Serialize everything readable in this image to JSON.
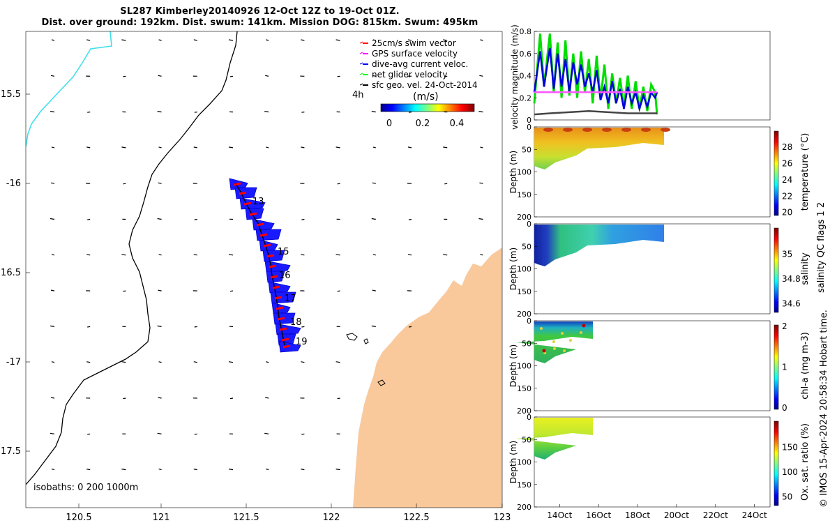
{
  "title_line1": "SL287 Kimberley20140926 12-Oct 12Z to 19-Oct 01Z.",
  "title_line2": "Dist. over ground: 192km. Dist. swum: 141km. Mission DOG: 815km. Swum: 495km",
  "map": {
    "lon_ticks": [
      "120.5",
      "121",
      "121.5",
      "122",
      "122.5",
      "123"
    ],
    "lat_ticks": [
      "15.5",
      "-16",
      "16.5",
      "-17",
      "17.5"
    ],
    "isobath_label": "isobaths: 0   200  1000m",
    "day_labels": [
      "13",
      "15",
      "16",
      "17",
      "18",
      "19"
    ],
    "legend": [
      {
        "label": "25cm/s swim vector",
        "color": "#ff0000"
      },
      {
        "label": "GPS surface velocity",
        "color": "#ff00ff"
      },
      {
        "label": "dive-avg current veloc.",
        "color": "#0000ff"
      },
      {
        "label": "net glider velocity",
        "color": "#00ff00"
      },
      {
        "label": "sfc geo. vel. 24-Oct-2014",
        "color": "#000000"
      }
    ],
    "colorbar_unit": "(m/s)",
    "colorbar_ticks": [
      "0",
      "0.2",
      "0.4"
    ],
    "scale_label": "4h",
    "land_color": "#f9c89b",
    "track_color": "#1a1aff",
    "shallow_isobath_color": "#40e0e8"
  },
  "chart_data": [
    {
      "type": "line",
      "title": "",
      "ylabel": "velocity magnitude (m/s)",
      "yticks": [
        "0",
        "0.2",
        "0.4",
        "0.6",
        "0.8"
      ],
      "ylim": [
        0,
        0.8
      ],
      "xlim": [
        "12.7Oct",
        "24.8Oct"
      ],
      "series": [
        {
          "color": "#00dd00",
          "x": [
            12.7,
            13.0,
            13.2,
            13.5,
            13.7,
            13.9,
            14.1,
            14.3,
            14.5,
            14.7,
            14.9,
            15.1,
            15.3,
            15.5,
            15.7,
            15.9,
            16.1,
            16.3,
            16.5,
            16.7,
            16.9,
            17.1,
            17.3,
            17.5,
            17.7,
            17.9,
            18.1,
            18.3,
            18.5,
            18.7,
            18.9,
            19.0
          ],
          "y": [
            0.15,
            0.78,
            0.3,
            0.78,
            0.25,
            0.7,
            0.2,
            0.72,
            0.22,
            0.6,
            0.2,
            0.62,
            0.25,
            0.55,
            0.15,
            0.58,
            0.18,
            0.5,
            0.1,
            0.42,
            0.15,
            0.38,
            0.12,
            0.4,
            0.1,
            0.35,
            0.1,
            0.3,
            0.08,
            0.32,
            0.25,
            0.05
          ]
        },
        {
          "color": "#0000dd",
          "x": [
            12.7,
            13.0,
            13.2,
            13.5,
            13.7,
            13.9,
            14.1,
            14.3,
            14.5,
            14.7,
            14.9,
            15.1,
            15.3,
            15.5,
            15.7,
            15.9,
            16.1,
            16.3,
            16.5,
            16.7,
            16.9,
            17.1,
            17.3,
            17.5,
            17.7,
            17.9,
            18.1,
            18.3,
            18.5,
            18.7,
            18.9,
            19.0
          ],
          "y": [
            0.25,
            0.62,
            0.3,
            0.65,
            0.28,
            0.6,
            0.3,
            0.55,
            0.25,
            0.52,
            0.32,
            0.5,
            0.3,
            0.42,
            0.25,
            0.45,
            0.18,
            0.3,
            0.15,
            0.35,
            0.15,
            0.28,
            0.1,
            0.3,
            0.15,
            0.25,
            0.1,
            0.22,
            0.12,
            0.25,
            0.2,
            0.25
          ]
        },
        {
          "color": "#ff55ff",
          "x": [
            12.7,
            19.0
          ],
          "y": [
            0.25,
            0.25
          ]
        },
        {
          "color": "#444444",
          "x": [
            12.7,
            13.5,
            14.5,
            15.5,
            16.5,
            17.5,
            18.5,
            19.0
          ],
          "y": [
            0.05,
            0.06,
            0.07,
            0.08,
            0.07,
            0.06,
            0.06,
            0.06
          ]
        }
      ]
    },
    {
      "type": "heatmap",
      "ylabel": "Depth (m)",
      "yticks": [
        "0",
        "50",
        "100",
        "150",
        "200"
      ],
      "colorbar_label": "temperature (°C)",
      "colorbar_ticks": [
        "20",
        "22",
        "24",
        "26",
        "28"
      ]
    },
    {
      "type": "heatmap",
      "ylabel": "Depth (m)",
      "yticks": [
        "0",
        "50",
        "100",
        "150",
        "200"
      ],
      "colorbar_label": "salinity",
      "colorbar_ticks": [
        "34.6",
        "34.8",
        "35"
      ]
    },
    {
      "type": "heatmap",
      "ylabel": "Depth (m)",
      "yticks": [
        "0",
        "50",
        "100",
        "150",
        "200"
      ],
      "colorbar_label": "chl-a (mg m-3)",
      "colorbar_ticks": [
        "0",
        "1",
        "2"
      ]
    },
    {
      "type": "heatmap",
      "ylabel": "Depth (m)",
      "yticks": [
        "0",
        "50",
        "100",
        "150",
        "200"
      ],
      "colorbar_label": "Ox. sat. ratio (%)",
      "colorbar_ticks": [
        "50",
        "100",
        "150"
      ]
    }
  ],
  "time_axis_ticks": [
    "14Oct",
    "16Oct",
    "18Oct",
    "20Oct",
    "22Oct",
    "24Oct"
  ],
  "side_note": "salinity QC flags 1  2",
  "copyright": "© IMOS 15-Apr-2024 20:58:34 Hobart time."
}
